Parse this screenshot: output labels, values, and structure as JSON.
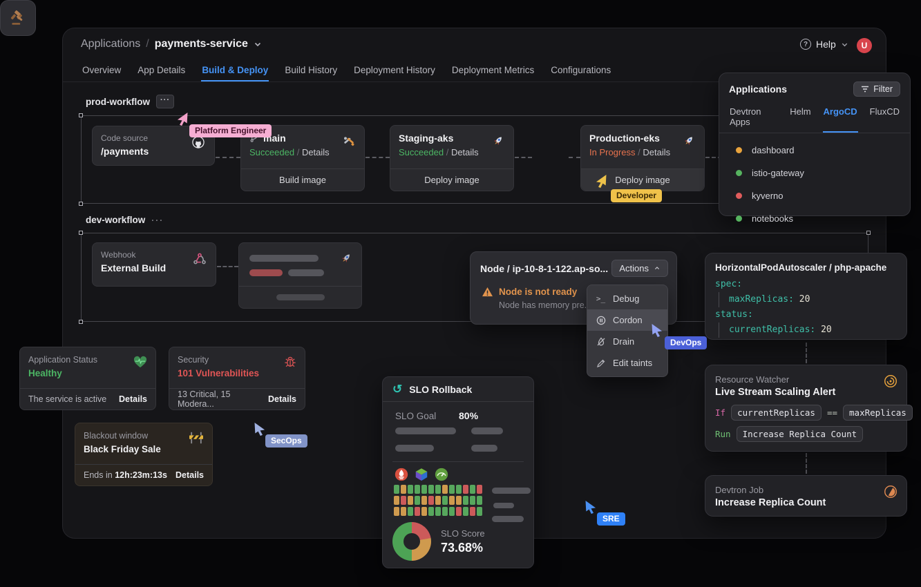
{
  "header": {
    "breadcrumb_root": "Applications",
    "breadcrumb_sep": "/",
    "app_name": "payments-service",
    "help_label": "Help",
    "help_q": "?",
    "avatar_initial": "U",
    "tabs": [
      {
        "label": "Overview"
      },
      {
        "label": "App Details"
      },
      {
        "label": "Build & Deploy"
      },
      {
        "label": "Build History"
      },
      {
        "label": "Deployment History"
      },
      {
        "label": "Deployment Metrics"
      },
      {
        "label": "Configurations"
      }
    ],
    "active_tab": "Build & Deploy"
  },
  "prod_workflow": {
    "title": "prod-workflow",
    "more_label": "···",
    "code_source": {
      "label": "Code source",
      "repo": "/payments"
    },
    "build": {
      "branch": "main",
      "status": "Succeeded",
      "sep": "/",
      "details_label": "Details",
      "action": "Build image",
      "status_color": "#4cb564"
    },
    "staging": {
      "name": "Staging-aks",
      "status": "Succeeded",
      "sep": "/",
      "details_label": "Details",
      "action": "Deploy image",
      "status_color": "#4cb564"
    },
    "production": {
      "name": "Production-eks",
      "status": "In Progress",
      "sep": "/",
      "details_label": "Details",
      "action": "Deploy image",
      "status_color": "#e8734e"
    }
  },
  "dev_workflow": {
    "title": "dev-workflow",
    "more_label": "···",
    "webhook": {
      "label": "Webhook",
      "name": "External Build"
    }
  },
  "applications_panel": {
    "title": "Applications",
    "filter_label": "Filter",
    "tabs": [
      {
        "label": "Devtron Apps"
      },
      {
        "label": "Helm"
      },
      {
        "label": "ArgoCD"
      },
      {
        "label": "FluxCD"
      }
    ],
    "active_tab": "ArgoCD",
    "items": [
      {
        "name": "dashboard",
        "dot_color": "#e8a33d"
      },
      {
        "name": "istio-gateway",
        "dot_color": "#56b35f"
      },
      {
        "name": "kyverno",
        "dot_color": "#e05c5c"
      },
      {
        "name": "notebooks",
        "dot_color": "#56b35f"
      }
    ]
  },
  "node_panel": {
    "title": "Node / ip-10-8-1-122.ap-so...",
    "actions_label": "Actions",
    "warning_title": "Node is not ready",
    "warning_sub": "Node has memory pre...",
    "menu": [
      {
        "label": "Debug"
      },
      {
        "label": "Cordon"
      },
      {
        "label": "Drain"
      },
      {
        "label": "Edit taints"
      }
    ],
    "active_item": "Cordon"
  },
  "hpa_panel": {
    "title": "HorizontalPodAutoscaler / php-apache",
    "spec_key": "spec:",
    "max_key": "maxReplicas:",
    "max_val": "20",
    "status_key": "status:",
    "current_key": "currentReplicas:",
    "current_val": "20"
  },
  "status_cards": {
    "app_status": {
      "title": "Application Status",
      "value": "Healthy",
      "footer": "The service is active",
      "details_label": "Details",
      "value_color": "#4cb564"
    },
    "security": {
      "title": "Security",
      "value": "101 Vulnerabilities",
      "footer": "13 Critical, 15 Modera...",
      "details_label": "Details",
      "value_color": "#e05555"
    },
    "blackout": {
      "title": "Blackout window",
      "value": "Black Friday Sale",
      "footer_prefix": "Ends in",
      "countdown": "12h:23m:13s",
      "details_label": "Details"
    }
  },
  "slo_panel": {
    "title": "SLO Rollback",
    "undo_glyph": "↺",
    "goal_label": "SLO Goal",
    "goal_value": "80%",
    "score_label": "SLO Score",
    "score_value": "73.68%",
    "grid": {
      "rows": [
        [
          "g",
          "o",
          "g",
          "g",
          "g",
          "g",
          "g",
          "o",
          "g",
          "g",
          "r",
          "g",
          "r"
        ],
        [
          "o",
          "r",
          "o",
          "g",
          "o",
          "r",
          "o",
          "g",
          "o",
          "o",
          "g",
          "g",
          "g"
        ],
        [
          "o",
          "o",
          "g",
          "r",
          "o",
          "g",
          "g",
          "g",
          "g",
          "r",
          "g",
          "r",
          "g"
        ]
      ],
      "colors": {
        "g": "#57a75d",
        "o": "#cf9a4e",
        "r": "#cc5a5a"
      }
    },
    "donut": {
      "segments": [
        {
          "color": "#cc5a5a",
          "deg": 80
        },
        {
          "color": "#cf9a4e",
          "deg": 100
        },
        {
          "color": "#4da355",
          "deg": 180
        }
      ]
    }
  },
  "resource_watcher": {
    "title": "Resource Watcher",
    "subtitle": "Live Stream Scaling Alert",
    "if_label": "If",
    "left_operand": "currentReplicas",
    "operator": "==",
    "right_operand": "maxReplicas",
    "run_label": "Run",
    "run_action": "Increase Replica Count"
  },
  "devtron_job": {
    "title": "Devtron Job",
    "name": "Increase Replica Count"
  },
  "cursors": {
    "platform_engineer": {
      "label": "Platform Engineer",
      "color": "#f2a0c8",
      "label_bg": "#f6aed3",
      "label_fg": "#46122c"
    },
    "developer": {
      "label": "Developer",
      "color": "#edc24a",
      "label_bg": "#f0c24a",
      "label_fg": "#3c2b06"
    },
    "secops": {
      "label": "SecOps",
      "color": "#9fb0e0",
      "label_bg": "#8193c7",
      "label_fg": "#ffffff"
    },
    "devops": {
      "label": "DevOps",
      "color": "#93a2f2",
      "label_bg": "#4b60d8",
      "label_fg": "#ffffff"
    },
    "sre": {
      "label": "SRE",
      "color": "#4a90f2",
      "label_bg": "#2f81f7",
      "label_fg": "#ffffff"
    }
  },
  "colors": {
    "accent": "#4593f5",
    "success": "#4cb564",
    "error": "#e05555",
    "warning": "#e2944d",
    "teal": "#35c3ad"
  }
}
